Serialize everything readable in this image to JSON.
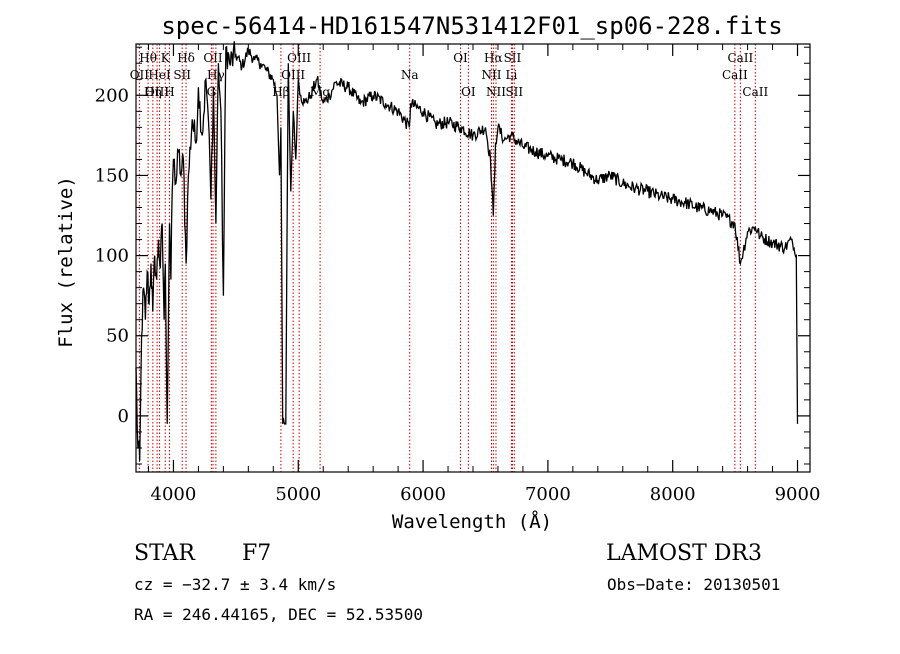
{
  "chart_data": {
    "type": "line",
    "title": "spec-56414-HD161547N531412F01_sp06-228.fits",
    "xlabel": "Wavelength (Å)",
    "ylabel": "Flux (relative)",
    "xlim": [
      3700,
      9100
    ],
    "ylim": [
      -35,
      232
    ],
    "x_ticks": [
      4000,
      5000,
      6000,
      7000,
      8000,
      9000
    ],
    "y_ticks": [
      0,
      50,
      100,
      150,
      200
    ],
    "series": [
      {
        "name": "spectrum",
        "x": [
          3700,
          3715,
          3730,
          3745,
          3760,
          3775,
          3790,
          3805,
          3820,
          3835,
          3850,
          3865,
          3880,
          3895,
          3910,
          3925,
          3935,
          3950,
          3968,
          3980,
          3990,
          4000,
          4020,
          4040,
          4060,
          4080,
          4101,
          4120,
          4150,
          4180,
          4200,
          4230,
          4260,
          4280,
          4300,
          4320,
          4340,
          4360,
          4380,
          4400,
          4420,
          4450,
          4500,
          4550,
          4600,
          4650,
          4700,
          4750,
          4800,
          4830,
          4850,
          4861,
          4875,
          4890,
          4900,
          4920,
          4940,
          4960,
          4980,
          5000,
          5020,
          5050,
          5100,
          5150,
          5200,
          5250,
          5300,
          5400,
          5500,
          5600,
          5700,
          5800,
          5890,
          5900,
          6000,
          6100,
          6200,
          6300,
          6400,
          6500,
          6540,
          6563,
          6580,
          6600,
          6650,
          6700,
          6800,
          6900,
          7000,
          7100,
          7200,
          7300,
          7400,
          7500,
          7600,
          7700,
          7800,
          7900,
          8000,
          8100,
          8200,
          8300,
          8400,
          8498,
          8542,
          8600,
          8662,
          8700,
          8800,
          8900,
          8950,
          8990,
          9000
        ],
        "y": [
          30,
          -20,
          -28,
          50,
          80,
          60,
          90,
          70,
          95,
          65,
          100,
          85,
          110,
          92,
          120,
          60,
          95,
          -5,
          120,
          85,
          140,
          160,
          145,
          165,
          150,
          160,
          95,
          150,
          185,
          170,
          205,
          175,
          210,
          185,
          135,
          205,
          120,
          220,
          190,
          75,
          230,
          220,
          225,
          218,
          228,
          222,
          220,
          215,
          210,
          200,
          150,
          180,
          -5,
          -5,
          -5,
          220,
          140,
          190,
          160,
          210,
          200,
          195,
          200,
          210,
          195,
          200,
          208,
          205,
          195,
          200,
          195,
          190,
          180,
          195,
          190,
          182,
          183,
          180,
          175,
          180,
          160,
          125,
          170,
          180,
          172,
          175,
          168,
          165,
          162,
          160,
          158,
          152,
          147,
          150,
          145,
          142,
          140,
          137,
          135,
          133,
          130,
          128,
          125,
          120,
          95,
          115,
          118,
          112,
          108,
          105,
          110,
          100,
          -5
        ]
      }
    ],
    "spectral_lines": [
      {
        "name": "Hθ",
        "wavelength": 3797,
        "row": 0
      },
      {
        "name": "OII",
        "wavelength": 3727,
        "row": 1
      },
      {
        "name": "OIII",
        "wavelength": 3869,
        "row": 2
      },
      {
        "name": "K",
        "wavelength": 3934,
        "row": 0
      },
      {
        "name": "HeI",
        "wavelength": 3889,
        "row": 1
      },
      {
        "name": "Hη",
        "wavelength": 3835,
        "row": 2
      },
      {
        "name": "H",
        "wavelength": 3968,
        "row": 2
      },
      {
        "name": "Hδ",
        "wavelength": 4101,
        "row": 0
      },
      {
        "name": "SII",
        "wavelength": 4070,
        "row": 1
      },
      {
        "name": "OII",
        "wavelength": 4317,
        "row": 0
      },
      {
        "name": "Hγ",
        "wavelength": 4340,
        "row": 1
      },
      {
        "name": "G",
        "wavelength": 4304,
        "row": 2
      },
      {
        "name": "Hβ",
        "wavelength": 4861,
        "row": 2
      },
      {
        "name": "OIII",
        "wavelength": 5007,
        "row": 0
      },
      {
        "name": "OIII",
        "wavelength": 4959,
        "row": 1
      },
      {
        "name": "Mg",
        "wavelength": 5175,
        "row": 2
      },
      {
        "name": "Na",
        "wavelength": 5893,
        "row": 1
      },
      {
        "name": "OI",
        "wavelength": 6300,
        "row": 0
      },
      {
        "name": "OI",
        "wavelength": 6363,
        "row": 2
      },
      {
        "name": "Hα",
        "wavelength": 6563,
        "row": 0
      },
      {
        "name": "NII",
        "wavelength": 6548,
        "row": 1
      },
      {
        "name": "NII",
        "wavelength": 6584,
        "row": 2
      },
      {
        "name": "SII",
        "wavelength": 6716,
        "row": 0
      },
      {
        "name": "Li",
        "wavelength": 6708,
        "row": 1
      },
      {
        "name": "SII",
        "wavelength": 6731,
        "row": 2
      },
      {
        "name": "CaII",
        "wavelength": 8542,
        "row": 0
      },
      {
        "name": "CaII",
        "wavelength": 8498,
        "row": 1
      },
      {
        "name": "CaII",
        "wavelength": 8662,
        "row": 2
      }
    ]
  },
  "info": {
    "object_class": "STAR",
    "subclass": "F7",
    "survey": "LAMOST DR3",
    "cz": "cz = −32.7 ± 3.4 km/s",
    "obs_date": "Obs−Date: 20130501",
    "coords": "RA = 246.44165, DEC =  52.53500"
  },
  "colors": {
    "line": "#000000",
    "spectral_line": "#cc0000",
    "background": "#ffffff"
  }
}
